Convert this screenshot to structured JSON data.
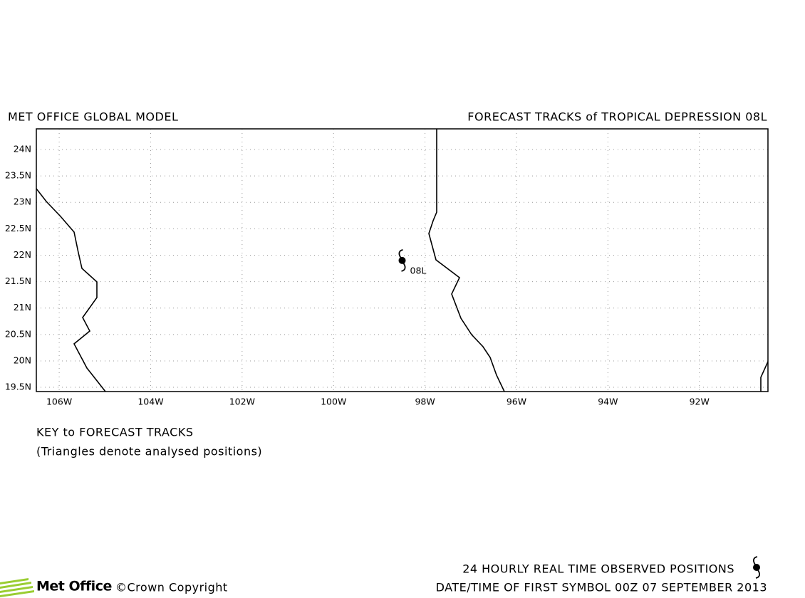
{
  "chart_data": {
    "type": "map",
    "title_left": "MET OFFICE GLOBAL MODEL",
    "title_right": "FORECAST TRACKS of TROPICAL DEPRESSION 08L",
    "xlim": [
      -106.5,
      -90.5
    ],
    "ylim": [
      19.42,
      24.39
    ],
    "xticks": [
      {
        "value": -106,
        "label": "106W"
      },
      {
        "value": -104,
        "label": "104W"
      },
      {
        "value": -102,
        "label": "102W"
      },
      {
        "value": -100,
        "label": "100W"
      },
      {
        "value": -98,
        "label": "98W"
      },
      {
        "value": -96,
        "label": "96W"
      },
      {
        "value": -94,
        "label": "94W"
      },
      {
        "value": -92,
        "label": "92W"
      }
    ],
    "yticks": [
      {
        "value": 19.5,
        "label": "19.5N"
      },
      {
        "value": 20,
        "label": "20N"
      },
      {
        "value": 20.5,
        "label": "20.5N"
      },
      {
        "value": 21,
        "label": "21N"
      },
      {
        "value": 21.5,
        "label": "21.5N"
      },
      {
        "value": 22,
        "label": "22N"
      },
      {
        "value": 22.5,
        "label": "22.5N"
      },
      {
        "value": 23,
        "label": "23N"
      },
      {
        "value": 23.5,
        "label": "23.5N"
      },
      {
        "value": 24,
        "label": "24N"
      }
    ],
    "grid": true,
    "storm": {
      "name": "08L",
      "lon": -98.5,
      "lat": 21.9
    },
    "key_title": "KEY to FORECAST TRACKS",
    "key_note": "(Triangles denote analysed positions)",
    "footer_observed": "24 HOURLY REAL TIME OBSERVED POSITIONS",
    "footer_date": "DATE/TIME OF FIRST SYMBOL 00Z 07 SEPTEMBER 2013",
    "logo": "Met Office",
    "copyright": "©Crown Copyright"
  }
}
